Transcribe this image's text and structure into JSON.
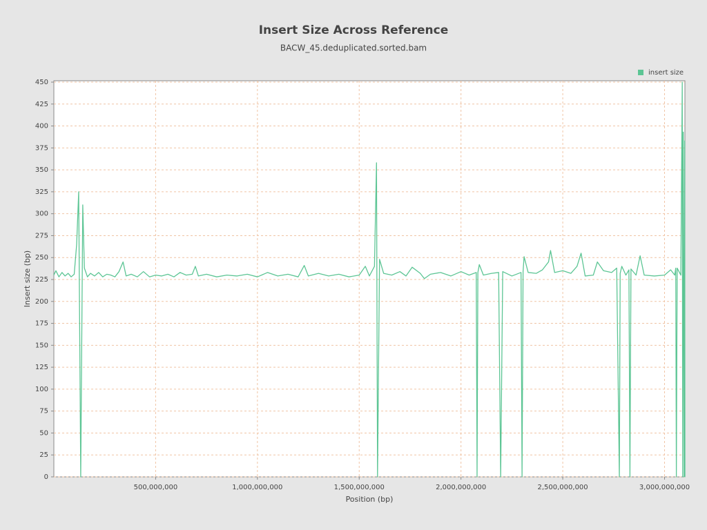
{
  "chart_data": {
    "type": "line",
    "title": "Insert Size Across Reference",
    "subtitle": "BACW_45.deduplicated.sorted.bam",
    "x_label": "Position (bp)",
    "y_label": "Insert size (bp)",
    "legend_position": "top-right",
    "grid": true,
    "xlim": [
      0,
      3100000000
    ],
    "ylim": [
      0,
      450
    ],
    "xticks": [
      {
        "value": 500000000,
        "label": "500,000,000"
      },
      {
        "value": 1000000000,
        "label": "1,000,000,000"
      },
      {
        "value": 1500000000,
        "label": "1,500,000,000"
      },
      {
        "value": 2000000000,
        "label": "2,000,000,000"
      },
      {
        "value": 2500000000,
        "label": "2,500,000,000"
      },
      {
        "value": 3000000000,
        "label": "3,000,000,000"
      }
    ],
    "yticks": [
      0,
      25,
      50,
      75,
      100,
      125,
      150,
      175,
      200,
      225,
      250,
      275,
      300,
      325,
      350,
      375,
      400,
      425,
      450
    ],
    "x": [
      0,
      10000000,
      25000000,
      40000000,
      55000000,
      70000000,
      85000000,
      100000000,
      112000000,
      122000000,
      132000000,
      142000000,
      150000000,
      165000000,
      180000000,
      200000000,
      220000000,
      240000000,
      260000000,
      280000000,
      300000000,
      320000000,
      340000000,
      355000000,
      380000000,
      410000000,
      440000000,
      470000000,
      500000000,
      530000000,
      560000000,
      590000000,
      620000000,
      650000000,
      680000000,
      695000000,
      710000000,
      750000000,
      800000000,
      850000000,
      900000000,
      950000000,
      1000000000,
      1050000000,
      1100000000,
      1150000000,
      1200000000,
      1230000000,
      1250000000,
      1300000000,
      1350000000,
      1400000000,
      1450000000,
      1500000000,
      1530000000,
      1550000000,
      1575000000,
      1585000000,
      1590000000,
      1600000000,
      1620000000,
      1660000000,
      1700000000,
      1730000000,
      1760000000,
      1800000000,
      1820000000,
      1850000000,
      1900000000,
      1950000000,
      2000000000,
      2040000000,
      2075000000,
      2079000000,
      2083000000,
      2090000000,
      2110000000,
      2150000000,
      2185000000,
      2195000000,
      2205000000,
      2250000000,
      2295000000,
      2300000000,
      2305000000,
      2310000000,
      2330000000,
      2370000000,
      2400000000,
      2430000000,
      2440000000,
      2460000000,
      2500000000,
      2540000000,
      2570000000,
      2590000000,
      2610000000,
      2650000000,
      2670000000,
      2700000000,
      2740000000,
      2765000000,
      2778000000,
      2782000000,
      2790000000,
      2810000000,
      2825000000,
      2830000000,
      2835000000,
      2860000000,
      2880000000,
      2900000000,
      2950000000,
      3000000000,
      3030000000,
      3050000000,
      3055000000,
      3058000000,
      3062000000,
      3080000000,
      3087000000,
      3089000000,
      3092000000,
      3096000000,
      3099000000,
      3100000000
    ],
    "series": [
      {
        "name": "insert size",
        "color": "#5cc594",
        "values": [
          230,
          235,
          228,
          233,
          229,
          232,
          228,
          231,
          265,
          325,
          0,
          310,
          238,
          228,
          232,
          229,
          233,
          228,
          231,
          230,
          228,
          234,
          245,
          229,
          231,
          228,
          234,
          228,
          230,
          229,
          231,
          228,
          233,
          230,
          231,
          240,
          229,
          231,
          228,
          230,
          229,
          231,
          228,
          233,
          229,
          231,
          228,
          241,
          229,
          232,
          229,
          231,
          228,
          230,
          240,
          229,
          240,
          358,
          0,
          248,
          232,
          230,
          234,
          229,
          239,
          232,
          226,
          231,
          233,
          229,
          234,
          230,
          233,
          0,
          233,
          242,
          230,
          232,
          233,
          0,
          234,
          229,
          233,
          0,
          234,
          251,
          233,
          232,
          236,
          245,
          258,
          233,
          235,
          232,
          240,
          255,
          229,
          230,
          245,
          235,
          233,
          238,
          0,
          232,
          240,
          230,
          236,
          0,
          237,
          230,
          252,
          230,
          229,
          230,
          236,
          230,
          238,
          0,
          238,
          230,
          450,
          0,
          393,
          0,
          383,
          0
        ]
      }
    ]
  }
}
